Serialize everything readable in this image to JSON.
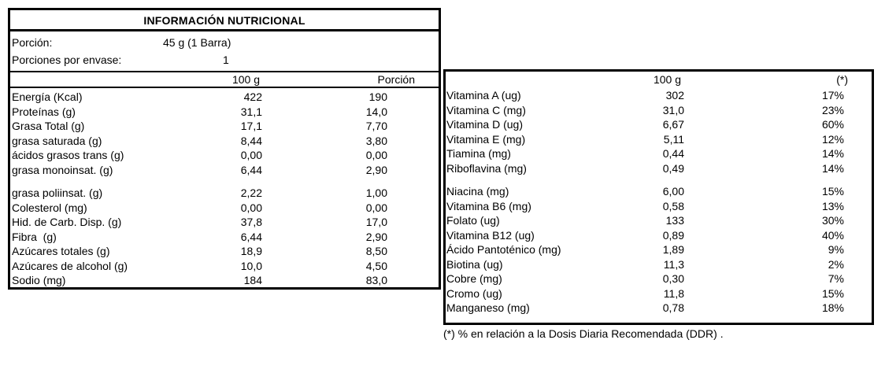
{
  "nutrition_panel": {
    "title": "INFORMACIÓN NUTRICIONAL",
    "serving_rows": [
      {
        "label": "Porción:",
        "value": "45 g (1 Barra)"
      },
      {
        "label": "Porciones por envase:",
        "value": "1"
      }
    ],
    "col_per100": "100 g",
    "col_portion": "Porción",
    "rows": [
      {
        "label": "Energía (Kcal)",
        "per100": "422",
        "portion": "190"
      },
      {
        "label": "Proteínas (g)",
        "per100": "31,1",
        "portion": "14,0"
      },
      {
        "label": "Grasa Total (g)",
        "per100": "17,1",
        "portion": "7,70"
      },
      {
        "label": "grasa saturada (g)",
        "per100": "8,44",
        "portion": "3,80"
      },
      {
        "label": "ácidos grasos trans (g)",
        "per100": "0,00",
        "portion": "0,00"
      },
      {
        "label": "grasa monoinsat. (g)",
        "per100": "6,44",
        "portion": "2,90"
      },
      {
        "label": "grasa poliinsat. (g)",
        "per100": "2,22",
        "portion": "1,00",
        "gap_before": true
      },
      {
        "label": "Colesterol (mg)",
        "per100": "0,00",
        "portion": "0,00"
      },
      {
        "label": "Hid. de Carb. Disp. (g)",
        "per100": "37,8",
        "portion": "17,0"
      },
      {
        "label": "Fibra  (g)",
        "per100": "6,44",
        "portion": "2,90"
      },
      {
        "label": "Azúcares totales (g)",
        "per100": "18,9",
        "portion": "8,50"
      },
      {
        "label": "Azúcares de alcohol (g)",
        "per100": "10,0",
        "portion": "4,50"
      },
      {
        "label": "Sodio (mg)",
        "per100": "184",
        "portion": "83,0"
      }
    ]
  },
  "vitamins_panel": {
    "col_per100": "100 g",
    "col_ddr": "(*)",
    "rows": [
      {
        "label": "Vitamina A (ug)",
        "per100": "302",
        "ddr": "17%"
      },
      {
        "label": "Vitamina C (mg)",
        "per100": "31,0",
        "ddr": "23%"
      },
      {
        "label": "Vitamina D (ug)",
        "per100": "6,67",
        "ddr": "60%"
      },
      {
        "label": "Vitamina E (mg)",
        "per100": "5,11",
        "ddr": "12%"
      },
      {
        "label": "Tiamina (mg)",
        "per100": "0,44",
        "ddr": "14%"
      },
      {
        "label": "Riboflavina (mg)",
        "per100": "0,49",
        "ddr": "14%"
      },
      {
        "label": "Niacina (mg)",
        "per100": "6,00",
        "ddr": "15%",
        "gap_before": true
      },
      {
        "label": "Vitamina B6 (mg)",
        "per100": "0,58",
        "ddr": "13%"
      },
      {
        "label": "Folato (ug)",
        "per100": "133",
        "ddr": "30%"
      },
      {
        "label": "Vitamina B12 (ug)",
        "per100": "0,89",
        "ddr": "40%"
      },
      {
        "label": "Ácido Pantoténico (mg)",
        "per100": "1,89",
        "ddr": "9%"
      },
      {
        "label": "Biotina (ug)",
        "per100": "11,3",
        "ddr": "2%"
      },
      {
        "label": "Cobre (mg)",
        "per100": "0,30",
        "ddr": "7%"
      },
      {
        "label": "Cromo (ug)",
        "per100": "11,8",
        "ddr": "15%"
      },
      {
        "label": "Manganeso (mg)",
        "per100": "0,78",
        "ddr": "18%"
      }
    ]
  },
  "footnote": "(*) % en relación a la Dosis Diaria Recomendada (DDR) ."
}
